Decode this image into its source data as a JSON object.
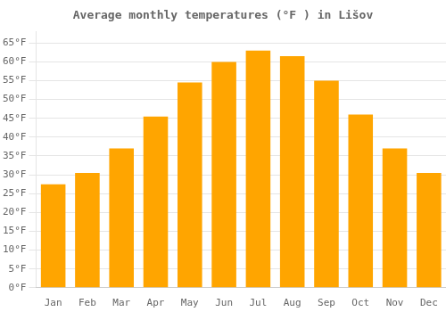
{
  "chart_data": {
    "type": "bar",
    "title": "Average monthly temperatures (°F ) in Lišov",
    "categories": [
      "Jan",
      "Feb",
      "Mar",
      "Apr",
      "May",
      "Jun",
      "Jul",
      "Aug",
      "Sep",
      "Oct",
      "Nov",
      "Dec"
    ],
    "values": [
      27.5,
      30.5,
      37,
      45.5,
      54.5,
      60,
      63,
      61.5,
      55,
      46,
      37,
      30.5
    ],
    "color": "#FFA500",
    "ylim": [
      0,
      68
    ],
    "yticks": [
      {
        "value": 0,
        "label": "0°F"
      },
      {
        "value": 5,
        "label": "5°F"
      },
      {
        "value": 10,
        "label": "10°F"
      },
      {
        "value": 15,
        "label": "15°F"
      },
      {
        "value": 20,
        "label": "20°F"
      },
      {
        "value": 25,
        "label": "25°F"
      },
      {
        "value": 30,
        "label": "30°F"
      },
      {
        "value": 35,
        "label": "35°F"
      },
      {
        "value": 40,
        "label": "40°F"
      },
      {
        "value": 45,
        "label": "45°F"
      },
      {
        "value": 50,
        "label": "50°F"
      },
      {
        "value": 55,
        "label": "55°F"
      },
      {
        "value": 60,
        "label": "60°F"
      },
      {
        "value": 65,
        "label": "65°F"
      }
    ],
    "grid": true
  }
}
